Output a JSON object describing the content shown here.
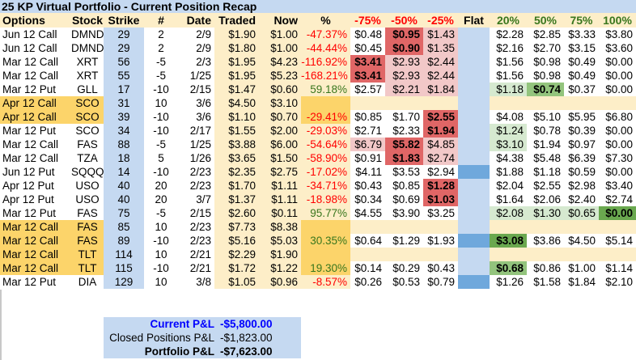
{
  "title": "25 KP Virtual Portfolio - Current Position Recap",
  "headers": [
    "Options",
    "Stock",
    "Strike",
    "#",
    "Date",
    "Traded",
    "Now",
    "%",
    "-75%",
    "-50%",
    "-25%",
    "Flat",
    "20%",
    "50%",
    "75%",
    "100%"
  ],
  "rows": [
    {
      "options": "Jun 12 Call",
      "stock": "DMND",
      "strike": "29",
      "qty": "2",
      "date": "2/9",
      "traded": "$1.90",
      "now": "$1.00",
      "pct": "-47.37%",
      "m75": "$0.48",
      "m50": "$0.95",
      "m25": "$1.43",
      "flat": "",
      "p20": "$2.28",
      "p50": "$2.85",
      "p75": "$3.33",
      "p100": "$3.80"
    },
    {
      "options": "Jun 12 Call",
      "stock": "DMND",
      "strike": "29",
      "qty": "2",
      "date": "2/9",
      "traded": "$1.80",
      "now": "$1.00",
      "pct": "-44.44%",
      "m75": "$0.45",
      "m50": "$0.90",
      "m25": "$1.35",
      "flat": "",
      "p20": "$2.16",
      "p50": "$2.70",
      "p75": "$3.15",
      "p100": "$3.60"
    },
    {
      "options": "Mar 12 Call",
      "stock": "XRT",
      "strike": "56",
      "qty": "-5",
      "date": "2/3",
      "traded": "$1.95",
      "now": "$4.23",
      "pct": "-116.92%",
      "m75": "$3.41",
      "m50": "$2.93",
      "m25": "$2.44",
      "flat": "",
      "p20": "$1.56",
      "p50": "$0.98",
      "p75": "$0.49",
      "p100": "$0.00"
    },
    {
      "options": "Mar 12 Call",
      "stock": "XRT",
      "strike": "55",
      "qty": "-5",
      "date": "1/25",
      "traded": "$1.95",
      "now": "$5.23",
      "pct": "-168.21%",
      "m75": "$3.41",
      "m50": "$2.93",
      "m25": "$2.44",
      "flat": "",
      "p20": "$1.56",
      "p50": "$0.98",
      "p75": "$0.49",
      "p100": "$0.00"
    },
    {
      "options": "Mar 12 Put",
      "stock": "GLL",
      "strike": "17",
      "qty": "-10",
      "date": "2/15",
      "traded": "$1.47",
      "now": "$0.60",
      "pct": "59.18%",
      "m75": "$2.57",
      "m50": "$2.21",
      "m25": "$1.84",
      "flat": "",
      "p20": "$1.18",
      "p50": "$0.74",
      "p75": "$0.37",
      "p100": "$0.00"
    },
    {
      "options": "Apr 12 Call",
      "stock": "SCO",
      "strike": "31",
      "qty": "10",
      "date": "3/6",
      "traded": "$4.50",
      "now": "$3.10",
      "pct": "",
      "m75": "",
      "m50": "",
      "m25": "",
      "flat": "",
      "p20": "",
      "p50": "",
      "p75": "",
      "p100": ""
    },
    {
      "options": "Apr 12 Call",
      "stock": "SCO",
      "strike": "39",
      "qty": "-10",
      "date": "3/6",
      "traded": "$1.10",
      "now": "$0.70",
      "pct": "-29.41%",
      "m75": "$0.85",
      "m50": "$1.70",
      "m25": "$2.55",
      "flat": "",
      "p20": "$4.08",
      "p50": "$5.10",
      "p75": "$5.95",
      "p100": "$6.80"
    },
    {
      "options": "Mar 12 Put",
      "stock": "SCO",
      "strike": "34",
      "qty": "-10",
      "date": "2/17",
      "traded": "$1.55",
      "now": "$2.00",
      "pct": "-29.03%",
      "m75": "$2.71",
      "m50": "$2.33",
      "m25": "$1.94",
      "flat": "",
      "p20": "$1.24",
      "p50": "$0.78",
      "p75": "$0.39",
      "p100": "$0.00"
    },
    {
      "options": "Mar 12 Call",
      "stock": "FAS",
      "strike": "88",
      "qty": "-5",
      "date": "1/25",
      "traded": "$3.88",
      "now": "$6.00",
      "pct": "-54.64%",
      "m75": "$6.79",
      "m50": "$5.82",
      "m25": "$4.85",
      "flat": "",
      "p20": "$3.10",
      "p50": "$1.94",
      "p75": "$0.97",
      "p100": "$0.00"
    },
    {
      "options": "Mar 12 Call",
      "stock": "TZA",
      "strike": "18",
      "qty": "5",
      "date": "1/26",
      "traded": "$3.65",
      "now": "$1.50",
      "pct": "-58.90%",
      "m75": "$0.91",
      "m50": "$1.83",
      "m25": "$2.74",
      "flat": "",
      "p20": "$4.38",
      "p50": "$5.48",
      "p75": "$6.39",
      "p100": "$7.30"
    },
    {
      "options": "Jun 12 Put",
      "stock": "SQQQ",
      "strike": "14",
      "qty": "-10",
      "date": "2/23",
      "traded": "$2.35",
      "now": "$2.75",
      "pct": "-17.02%",
      "m75": "$4.11",
      "m50": "$3.53",
      "m25": "$2.94",
      "flat": "",
      "p20": "$1.88",
      "p50": "$1.18",
      "p75": "$0.59",
      "p100": "$0.00"
    },
    {
      "options": "Apr 12 Put",
      "stock": "USO",
      "strike": "40",
      "qty": "20",
      "date": "2/23",
      "traded": "$1.70",
      "now": "$1.11",
      "pct": "-34.71%",
      "m75": "$0.43",
      "m50": "$0.85",
      "m25": "$1.28",
      "flat": "",
      "p20": "$2.04",
      "p50": "$2.55",
      "p75": "$2.98",
      "p100": "$3.40"
    },
    {
      "options": "Apr 12 Put",
      "stock": "USO",
      "strike": "40",
      "qty": "20",
      "date": "3/7",
      "traded": "$1.37",
      "now": "$1.11",
      "pct": "-18.98%",
      "m75": "$0.34",
      "m50": "$0.69",
      "m25": "$1.03",
      "flat": "",
      "p20": "$1.64",
      "p50": "$2.06",
      "p75": "$2.40",
      "p100": "$2.74"
    },
    {
      "options": "Mar 12 Put",
      "stock": "FAS",
      "strike": "75",
      "qty": "-5",
      "date": "2/15",
      "traded": "$2.60",
      "now": "$0.11",
      "pct": "95.77%",
      "m75": "$4.55",
      "m50": "$3.90",
      "m25": "$3.25",
      "flat": "",
      "p20": "$2.08",
      "p50": "$1.30",
      "p75": "$0.65",
      "p100": "$0.00"
    },
    {
      "options": "Mar 12 Call",
      "stock": "FAS",
      "strike": "85",
      "qty": "10",
      "date": "2/23",
      "traded": "$7.73",
      "now": "$8.38",
      "pct": "",
      "m75": "",
      "m50": "",
      "m25": "",
      "flat": "",
      "p20": "",
      "p50": "",
      "p75": "",
      "p100": ""
    },
    {
      "options": "Mar 12 Call",
      "stock": "FAS",
      "strike": "89",
      "qty": "-10",
      "date": "2/23",
      "traded": "$5.16",
      "now": "$5.03",
      "pct": "30.35%",
      "m75": "$0.64",
      "m50": "$1.29",
      "m25": "$1.93",
      "flat": "",
      "p20": "$3.08",
      "p50": "$3.86",
      "p75": "$4.50",
      "p100": "$5.14"
    },
    {
      "options": "Mar 12 Call",
      "stock": "TLT",
      "strike": "114",
      "qty": "10",
      "date": "2/21",
      "traded": "$2.29",
      "now": "$1.90",
      "pct": "",
      "m75": "",
      "m50": "",
      "m25": "",
      "flat": "",
      "p20": "",
      "p50": "",
      "p75": "",
      "p100": ""
    },
    {
      "options": "Mar 12 Call",
      "stock": "TLT",
      "strike": "115",
      "qty": "-10",
      "date": "2/21",
      "traded": "$1.72",
      "now": "$1.22",
      "pct": "19.30%",
      "m75": "$0.14",
      "m50": "$0.29",
      "m25": "$0.43",
      "flat": "",
      "p20": "$0.68",
      "p50": "$0.86",
      "p75": "$1.00",
      "p100": "$1.14"
    },
    {
      "options": "Mar 12 Put",
      "stock": "DIA",
      "strike": "129",
      "qty": "10",
      "date": "3/8",
      "traded": "$1.05",
      "now": "$0.96",
      "pct": "-8.57%",
      "m75": "$0.26",
      "m50": "$0.53",
      "m25": "$0.79",
      "flat": "",
      "p20": "$1.26",
      "p50": "$1.58",
      "p75": "$1.84",
      "p100": "$2.10"
    }
  ],
  "summary": {
    "current_label": "Current P&L",
    "current_value": "-$5,800.00",
    "closed_label": "Closed Positions P&L",
    "closed_value": "-$1,823.00",
    "portfolio_label": "Portfolio P&L",
    "portfolio_value": "-$7,623.00"
  },
  "colors": {
    "title_bg": "#c5d9f1",
    "header_bg": "#fdeec8",
    "spread_highlight": "#fcd46a",
    "loss_text": "#ff0000",
    "gain_text": "#38761d",
    "current_pl_text": "#0000ff"
  }
}
